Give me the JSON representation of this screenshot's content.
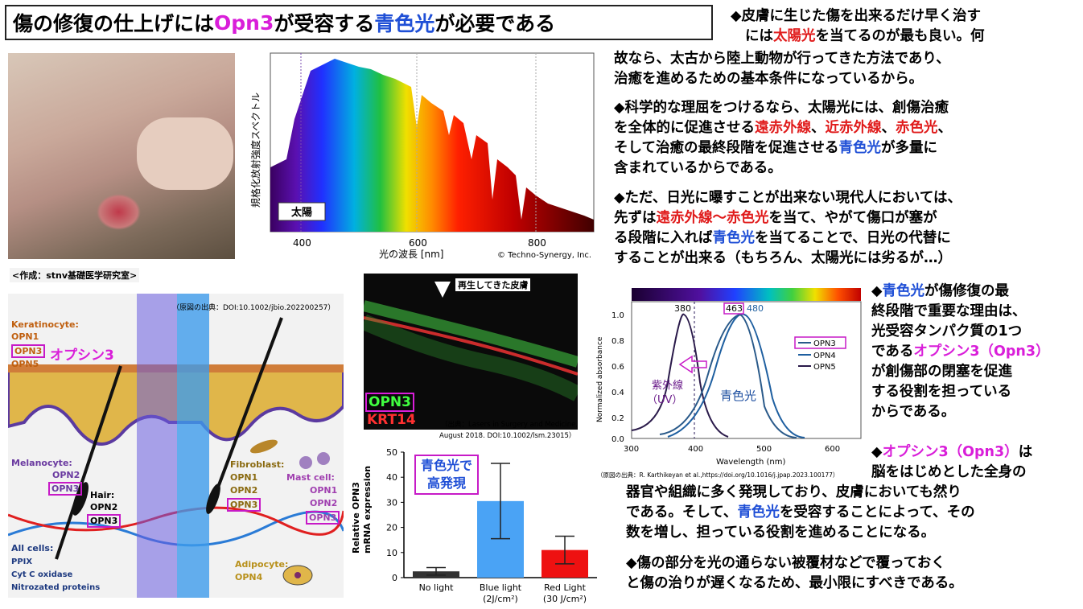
{
  "title": {
    "p1": "傷の修復の仕上げには",
    "p2": "Opn3",
    "p3": "が受容する",
    "p4": "青色光",
    "p5": "が必要である"
  },
  "spectrum": {
    "ylabel": "規格化放射強度スペクトル",
    "xlabel": "光の波長 [nm]",
    "ticks": [
      "400",
      "600",
      "800"
    ],
    "sun_label": "太陽",
    "credit": "© Techno-Synergy, Inc."
  },
  "author_note": "<作成：stnv基礎医学研究室>",
  "diagram": {
    "source": "（原図の出典：DOI:10.1002/jbio.202200257）",
    "keratinocyte": "Keratinocyte:",
    "opn1": "OPN1",
    "opn3": "OPN3",
    "opn5": "OPN5",
    "opsin3": "オプシン3",
    "melanocyte": "Melanocyte:",
    "opn2": "OPN2",
    "hair": "Hair:",
    "fibroblast": "Fibroblast:",
    "opn4": "OPN4",
    "mastcell": "Mast cell:",
    "adipocyte": "Adipocyte:",
    "allcells": "All cells:",
    "ppix": "PPIX",
    "cytc": "Cyt C oxidase",
    "nitro": "Nitrozated proteins"
  },
  "fluor": {
    "label": "再生してきた皮膚",
    "opn3": "OPN3",
    "krt14": "KRT14",
    "source1": "（出典：Lasers in Surgery and Medicine,",
    "source2": "August 2018. DOI:10.1002/lsm.23015）"
  },
  "bar_chart": {
    "ylabel1": "Relative OPN3",
    "ylabel2": "mRNA expression",
    "ticks": [
      "50",
      "40",
      "30",
      "20",
      "10",
      "0"
    ],
    "note1": "青色光で",
    "note2": "高発現",
    "cats": [
      {
        "l1": "No light",
        "l2": ""
      },
      {
        "l1": "Blue light",
        "l2": "(2J/cm²)"
      },
      {
        "l1": "Red Light",
        "l2": "(30 J/cm²)"
      }
    ],
    "values": [
      2.5,
      30.5,
      11
    ],
    "err_hi": [
      4,
      45.5,
      16.5
    ],
    "err_lo": [
      1,
      15.5,
      5.5
    ],
    "colors": [
      "#333333",
      "#4aa3f5",
      "#ee1111"
    ],
    "ylim": [
      0,
      50
    ]
  },
  "absorb": {
    "ylabel": "Normalized absorbance",
    "xlabel": "Wavelength (nm)",
    "yticks": [
      "1.0",
      "0.8",
      "0.6",
      "0.4",
      "0.2",
      "0.0"
    ],
    "xticks": [
      "300",
      "400",
      "500",
      "600"
    ],
    "peak380": "380",
    "peak463": "463",
    "peak480": "480",
    "legend": [
      "OPN3",
      "OPN4",
      "OPN5"
    ],
    "uv1": "紫外線",
    "uv2": "（UV）",
    "blue": "青色光",
    "source": "（原図の出典：R. Karthikeyan et al.,https://doi.org/10.1016/j.jpap.2023.100177）"
  },
  "text": {
    "b1a": "◆皮膚に生じた傷を出来るだけ早く治す",
    "b1b": "には",
    "b1c": "太陽光",
    "b1d": "を当てるのが最も良い。何",
    "b1e": "故なら、太古から陸上動物が行ってきた方法であり、",
    "b1f": "治癒を進めるための基本条件になっているから。",
    "b2a": "◆科学的な理屈をつけるなら、太陽光には、創傷治癒",
    "b2b": "を全体的に促進させる",
    "b2c": "遠赤外線",
    "b2d": "、",
    "b2e": "近赤外線",
    "b2f": "、",
    "b2g": "赤色光",
    "b2h": "、",
    "b2i": "そして治癒の最終段階を促進させる",
    "b2j": "青色光",
    "b2k": "が多量に",
    "b2l": "含まれているからである。",
    "b3a": "◆ただ、日光に曝すことが出来ない現代人においては、",
    "b3b": "先ずは",
    "b3c": "遠赤外線～赤色光",
    "b3d": "を当て、やがて傷口が塞が",
    "b3e": "る段階に入れば",
    "b3f": "青色光",
    "b3g": "を当てることで、日光の代替に",
    "b3h": "することが出来る（もちろん、太陽光には劣るが…）",
    "b4a": "◆",
    "b4b": "青色光",
    "b4c": "が傷修復の最",
    "b4d": "終段階で重要な理由は、",
    "b4e": "光受容タンパク質の1つ",
    "b4f": "である",
    "b4g": "オプシン3（Opn3）",
    "b4h": "が創傷部の閉塞を促進",
    "b4i": "する役割を担っている",
    "b4j": "からである。",
    "b5a": "◆",
    "b5b": "オプシン3（Opn3）",
    "b5c": "は",
    "b5d": "脳をはじめとした全身の",
    "b5e": "器官や組織に多く発現しており、皮膚においても然り",
    "b5f": "である。そして、",
    "b5g": "青色光",
    "b5h": "を受容することによって、その",
    "b5i": "数を増し、担っている役割を進めることになる。",
    "b6a": "◆傷の部分を光の通らない被覆材などで覆っておく",
    "b6b": "と傷の治りが遅くなるため、最小限にすべきである。"
  }
}
